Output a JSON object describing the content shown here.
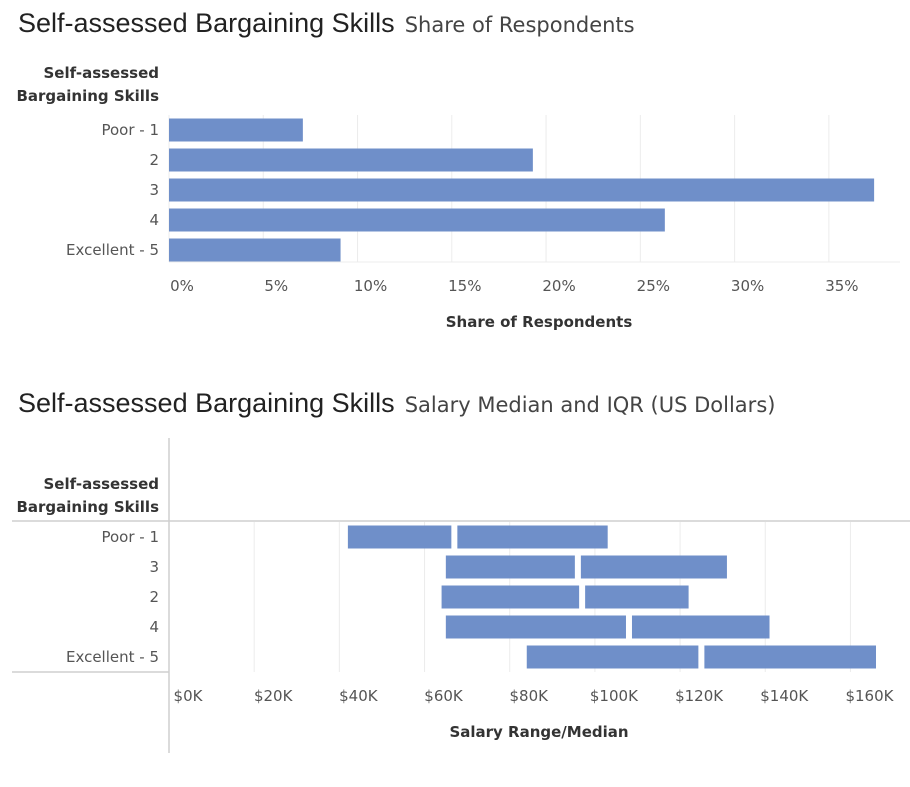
{
  "chart_data": [
    {
      "type": "bar",
      "orientation": "horizontal",
      "title": "Self-assessed Bargaining Skills",
      "subtitle": "Share of Respondents",
      "ylabel": "Self-assessed Bargaining Skills",
      "xlabel": "Share of Respondents",
      "categories": [
        "Poor - 1",
        "2",
        "3",
        "4",
        "Excellent - 5"
      ],
      "values": [
        7.1,
        19.3,
        37.4,
        26.3,
        9.1
      ],
      "xlim": [
        0,
        37.5
      ],
      "xticks": [
        0,
        5,
        10,
        15,
        20,
        25,
        30,
        35
      ],
      "xtick_labels": [
        "0%",
        "5%",
        "10%",
        "15%",
        "20%",
        "25%",
        "30%",
        "35%"
      ],
      "color": "#6f8fc9",
      "grid": true
    },
    {
      "type": "range",
      "orientation": "horizontal",
      "title": "Self-assessed Bargaining Skills",
      "subtitle": "Salary Median and IQR (US Dollars)",
      "ylabel": "Self-assessed Bargaining Skills",
      "xlabel": "Salary Range/Median",
      "categories": [
        "Poor - 1",
        "3",
        "2",
        "4",
        "Excellent - 5"
      ],
      "q1": [
        42000,
        65000,
        64000,
        65000,
        84000
      ],
      "median": [
        67000,
        96000,
        97000,
        108000,
        125000
      ],
      "q3": [
        103000,
        131000,
        122000,
        141000,
        166000
      ],
      "xlim": [
        0,
        166000
      ],
      "xticks": [
        0,
        20000,
        40000,
        60000,
        80000,
        100000,
        120000,
        140000,
        160000
      ],
      "xtick_labels": [
        "$0K",
        "$20K",
        "$40K",
        "$60K",
        "$80K",
        "$100K",
        "$120K",
        "$140K",
        "$160K"
      ],
      "color": "#6f8fc9",
      "grid": true
    }
  ]
}
